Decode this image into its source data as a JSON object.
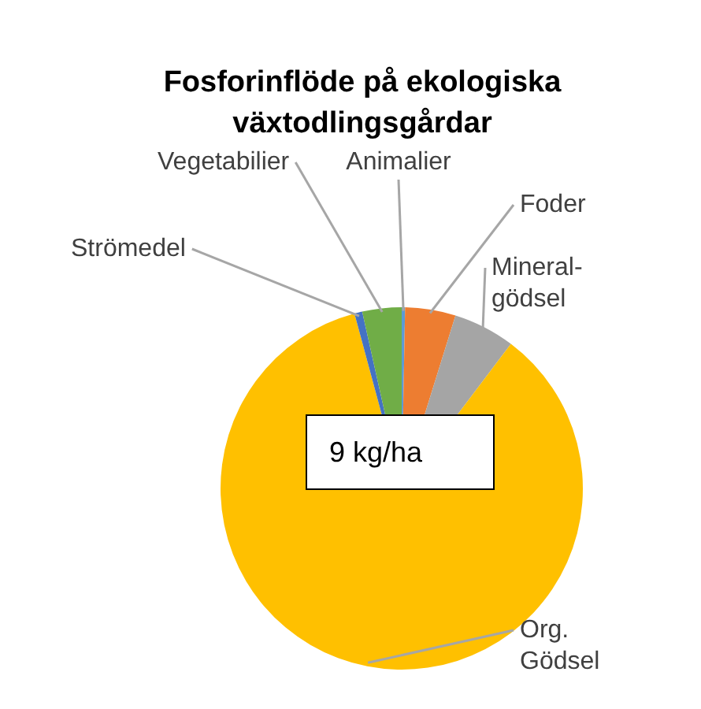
{
  "chart_data": {
    "type": "pie",
    "title": "Fosforinflöde på ekologiska växtodlingsgårdar",
    "categories": [
      "Animalier",
      "Foder",
      "Mineral-gödsel",
      "Org. Gödsel",
      "Strömedel",
      "Vegetabilier"
    ],
    "values": [
      0.3,
      4.5,
      5.5,
      85.5,
      0.7,
      3.5
    ],
    "colors": [
      "#5b9bd5",
      "#ed7d31",
      "#a5a5a5",
      "#ffc000",
      "#4472c4",
      "#70ad47"
    ],
    "annotations": [
      "9 kg/ha"
    ],
    "legend": false
  }
}
